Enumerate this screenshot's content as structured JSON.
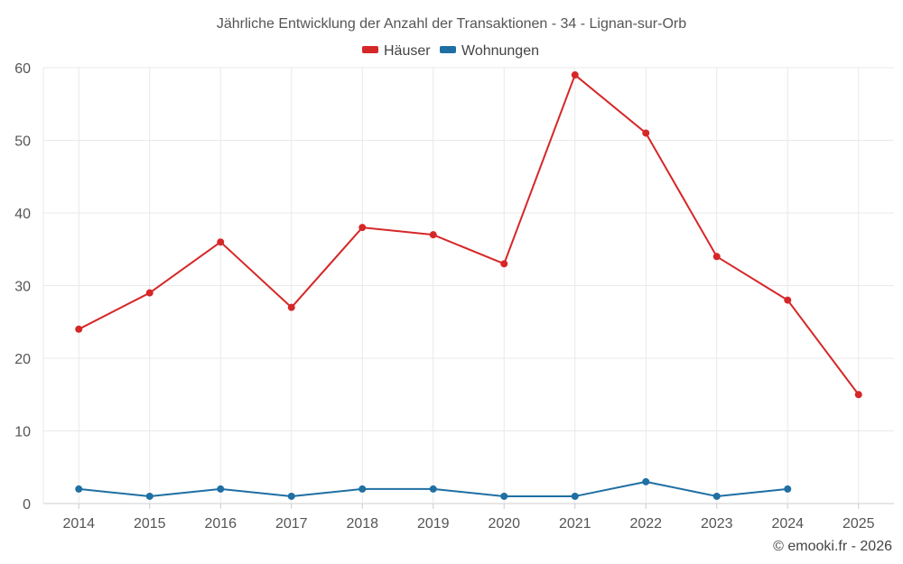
{
  "chart_data": {
    "type": "line",
    "title": "Jährliche Entwicklung der Anzahl der Transaktionen - 34 - Lignan-sur-Orb",
    "categories": [
      "2014",
      "2015",
      "2016",
      "2017",
      "2018",
      "2019",
      "2020",
      "2021",
      "2022",
      "2023",
      "2024",
      "2025"
    ],
    "ylim": [
      0,
      60
    ],
    "yticks": [
      0,
      10,
      20,
      30,
      40,
      50,
      60
    ],
    "grid": true,
    "legend_position": "top-center",
    "series": [
      {
        "name": "Häuser",
        "color": "#d62728",
        "values": [
          24,
          29,
          36,
          27,
          38,
          37,
          33,
          59,
          51,
          34,
          28,
          15
        ]
      },
      {
        "name": "Wohnungen",
        "color": "#1f6fa3",
        "values": [
          2,
          1,
          2,
          1,
          2,
          2,
          1,
          1,
          3,
          1,
          2,
          null
        ]
      }
    ]
  },
  "credit": "© emooki.fr - 2026"
}
